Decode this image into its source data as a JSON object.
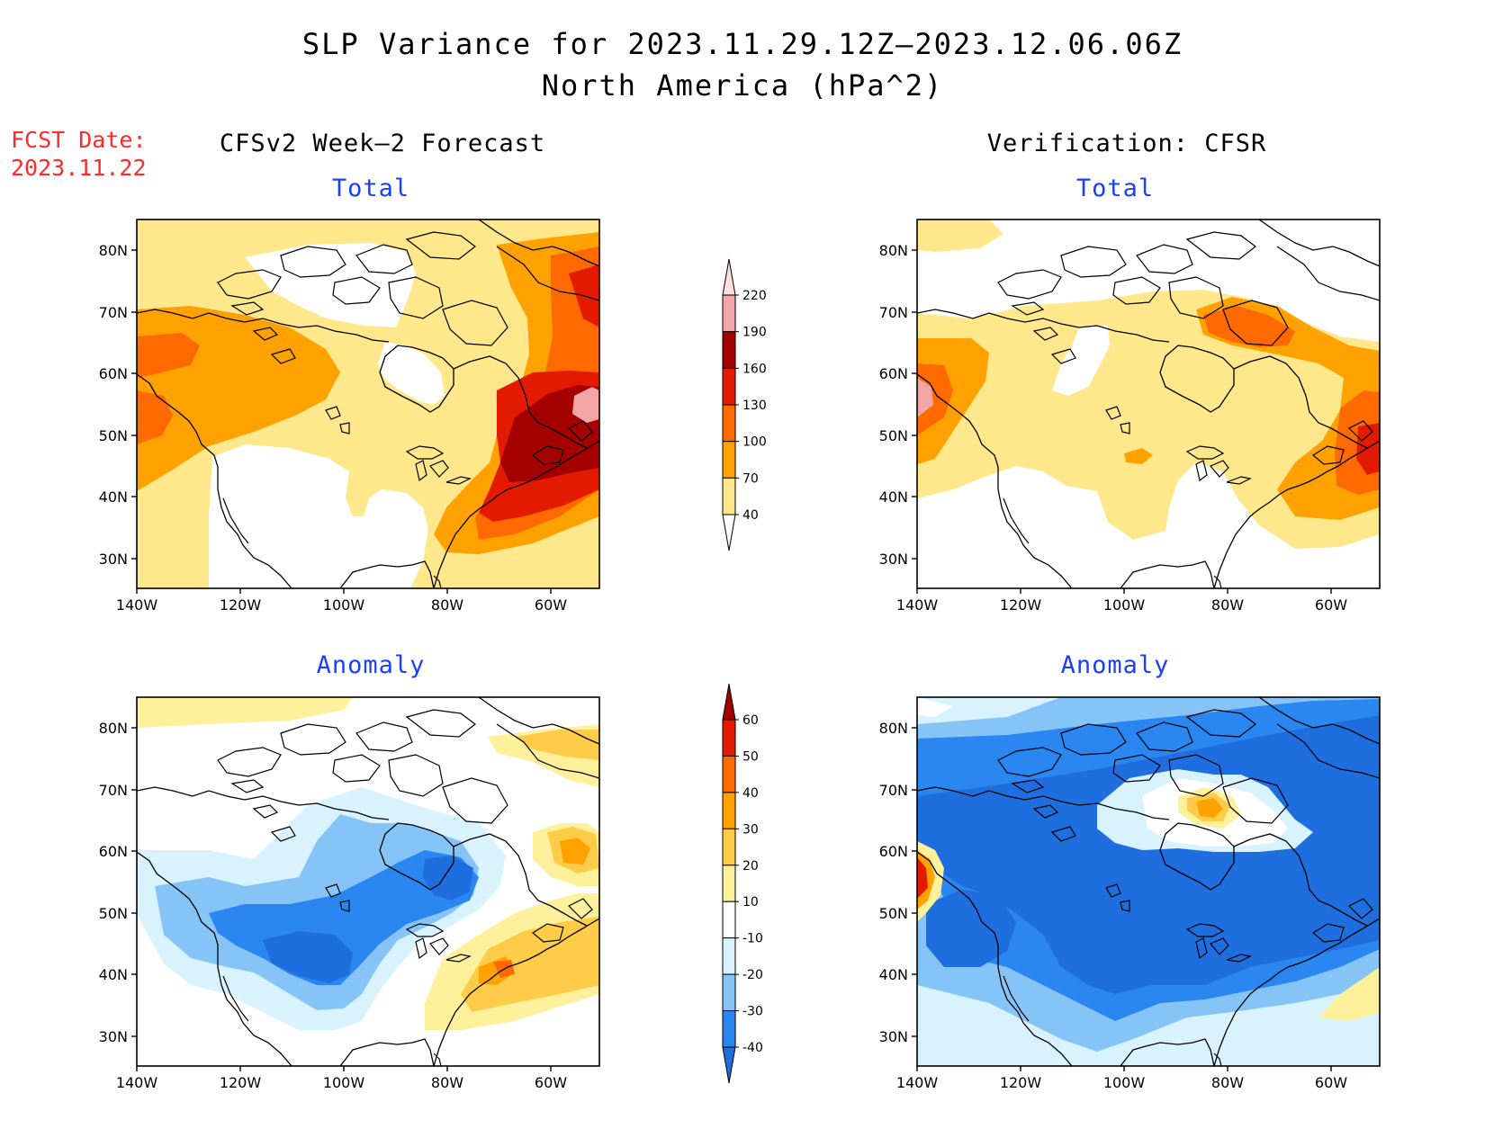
{
  "header": {
    "title": "SLP Variance for 2023.11.29.12Z—2023.12.06.06Z",
    "subtitle": "North America (hPa^2)",
    "fcst_label": "FCST Date:",
    "fcst_date": "2023.11.22"
  },
  "columns": {
    "forecast": "CFSv2 Week—2 Forecast",
    "verification": "Verification: CFSR"
  },
  "panels": {
    "forecast_total": "Total",
    "verification_total": "Total",
    "forecast_anomaly": "Anomaly",
    "verification_anomaly": "Anomaly"
  },
  "axes": {
    "lat_ticks": [
      "80N",
      "70N",
      "60N",
      "50N",
      "40N",
      "30N"
    ],
    "lon_ticks": [
      "140W",
      "120W",
      "100W",
      "80W",
      "60W"
    ]
  },
  "colorbars": {
    "total": {
      "labels": [
        "40",
        "70",
        "100",
        "130",
        "160",
        "190",
        "220"
      ],
      "colors": [
        "#ffffff",
        "#ffe78c",
        "#ffa200",
        "#ff6a00",
        "#e31a00",
        "#a50000",
        "#f4a5a5",
        "#fde0de"
      ]
    },
    "anomaly": {
      "labels": [
        "-40",
        "-30",
        "-20",
        "-10",
        "10",
        "20",
        "30",
        "40",
        "50",
        "60"
      ],
      "colors": [
        "#1e6ee0",
        "#2a86f0",
        "#86c4f8",
        "#d8f3ff",
        "#ffffff",
        "#fff19c",
        "#ffcc4a",
        "#ffa200",
        "#ff6a00",
        "#e31a00",
        "#a50000"
      ]
    }
  }
}
